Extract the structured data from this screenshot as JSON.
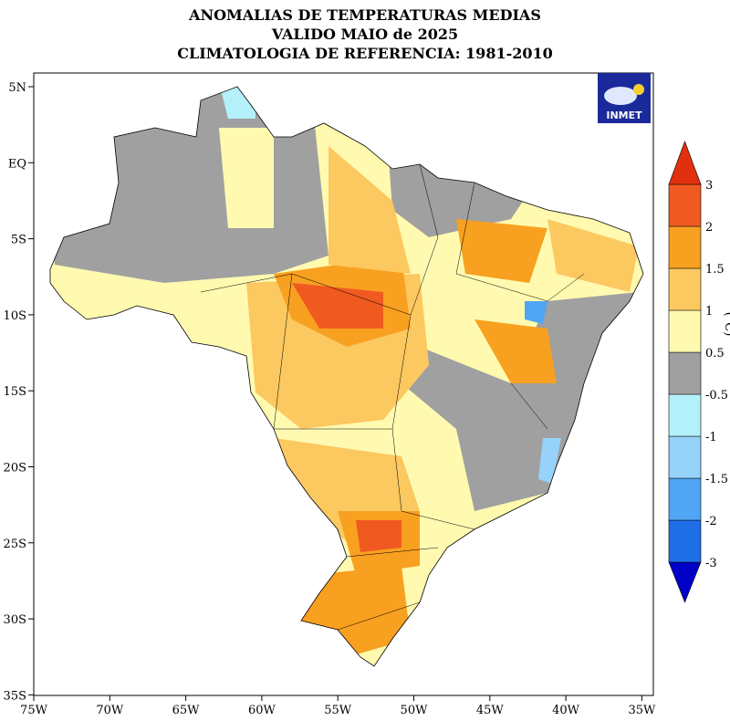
{
  "header": {
    "title_lines": [
      "ANOMALIAS DE TEMPERATURAS MEDIAS",
      "VALIDO MAIO de 2025",
      "CLIMATOLOGIA DE REFERENCIA: 1981-2010"
    ]
  },
  "logo": {
    "text": "INMET"
  },
  "lat_axis": {
    "ticks": [
      {
        "value": 5,
        "label": "5N"
      },
      {
        "value": 0,
        "label": "EQ"
      },
      {
        "value": -5,
        "label": "5S"
      },
      {
        "value": -10,
        "label": "10S"
      },
      {
        "value": -15,
        "label": "15S"
      },
      {
        "value": -20,
        "label": "20S"
      },
      {
        "value": -25,
        "label": "25S"
      },
      {
        "value": -30,
        "label": "30S"
      },
      {
        "value": -35,
        "label": "35S"
      }
    ]
  },
  "lon_axis": {
    "ticks": [
      {
        "value": -75,
        "label": "75W"
      },
      {
        "value": -70,
        "label": "70W"
      },
      {
        "value": -65,
        "label": "65W"
      },
      {
        "value": -60,
        "label": "60W"
      },
      {
        "value": -55,
        "label": "55W"
      },
      {
        "value": -50,
        "label": "50W"
      },
      {
        "value": -45,
        "label": "45W"
      },
      {
        "value": -40,
        "label": "40W"
      },
      {
        "value": -35,
        "label": "35W"
      }
    ]
  },
  "colorbar": {
    "unit": "(°C)",
    "colors": [
      "#0000c8",
      "#1e6ee6",
      "#50a5f5",
      "#96d2fa",
      "#b4f0fa",
      "#a0a0a0",
      "#fffab0",
      "#fcc860",
      "#f8a020",
      "#f05a20",
      "#e03010"
    ],
    "labels": [
      {
        "value": -3,
        "label": "-3"
      },
      {
        "value": -2,
        "label": "-2"
      },
      {
        "value": -1.5,
        "label": "-1.5"
      },
      {
        "value": -1,
        "label": "-1"
      },
      {
        "value": -0.5,
        "label": "-0.5"
      },
      0.5,
      1,
      1.5,
      2,
      3
    ]
  }
}
